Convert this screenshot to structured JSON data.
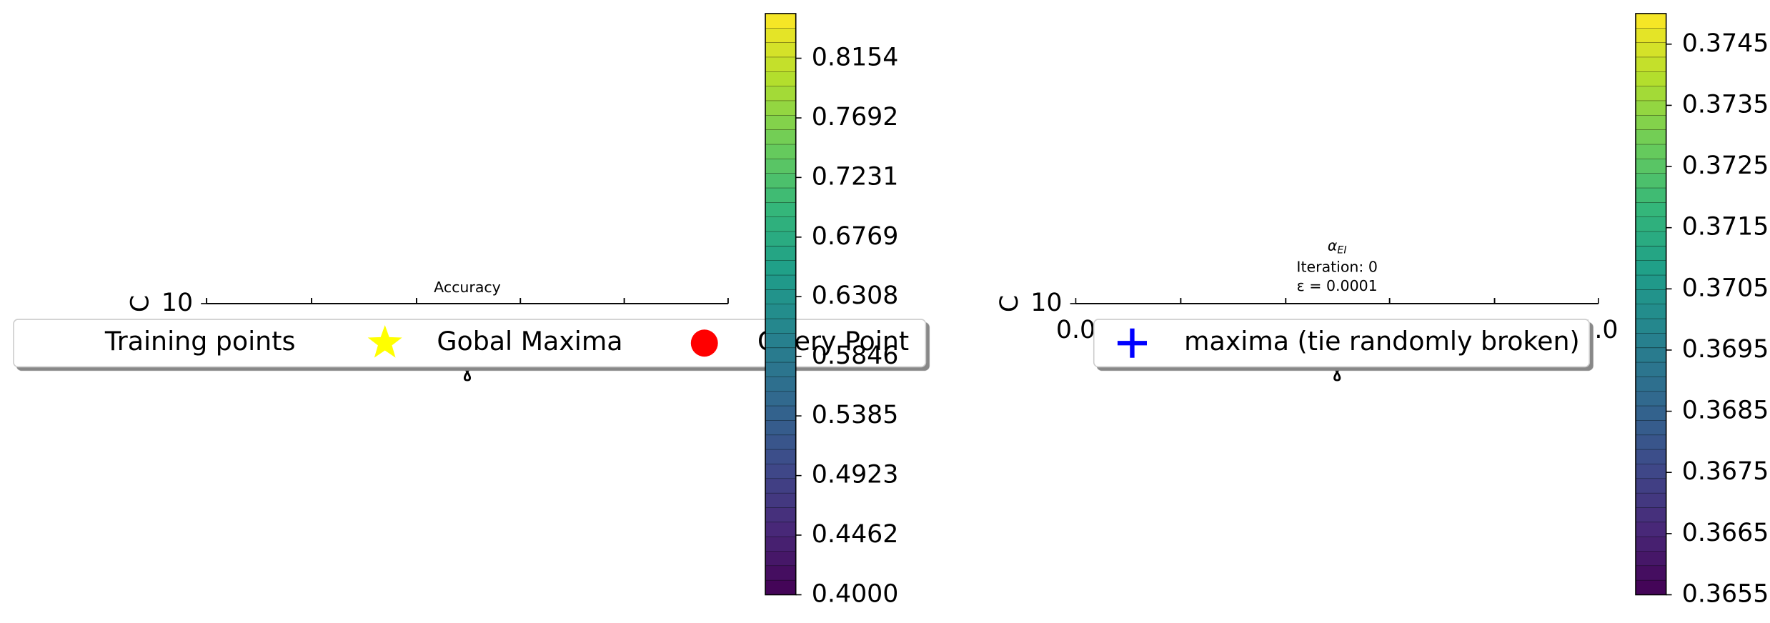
{
  "chart_data": [
    {
      "type": "contour",
      "title": "Accuracy",
      "xlabel": "ɣ",
      "ylabel": "C",
      "yticks": [
        10
      ],
      "colormap": "viridis",
      "colorbar": {
        "lim": [
          0.4,
          0.85
        ],
        "ticks": [
          {
            "value": 0.4,
            "label": "0.4000"
          },
          0.4462,
          0.4923,
          0.5385,
          0.5846,
          0.6308,
          0.6769,
          0.7231,
          0.7692,
          0.8154
        ]
      },
      "legend": [
        {
          "name": "Training points",
          "color": "#ffffff",
          "marker": "none"
        },
        {
          "name": "Gobal Maxima",
          "color": "#ffff00",
          "marker": "star"
        },
        {
          "name": "Query Point",
          "color": "#ff0000",
          "marker": "circle"
        }
      ]
    },
    {
      "type": "contour",
      "title": "α",
      "title_subscript": "EI",
      "subtitle": "Iteration: 0",
      "annotation": "ε = 0.0001",
      "xlabel": "ɣ",
      "ylabel": "C",
      "xlim": [
        0,
        1
      ],
      "xticks": [
        {
          "value": 0,
          "label": "0.0"
        },
        {
          "value": 1,
          "label": "1.0"
        }
      ],
      "yticks": [
        10
      ],
      "colormap": "viridis",
      "colorbar": {
        "lim": [
          0.3655,
          0.375
        ],
        "ticks": [
          0.3655,
          0.3665,
          0.3675,
          0.3685,
          0.3695,
          0.3705,
          0.3715,
          0.3725,
          0.3735,
          0.3745
        ]
      },
      "legend": [
        {
          "name": "maxima (tie randomly broken)",
          "color": "#0000ff",
          "marker": "plus"
        }
      ]
    }
  ]
}
